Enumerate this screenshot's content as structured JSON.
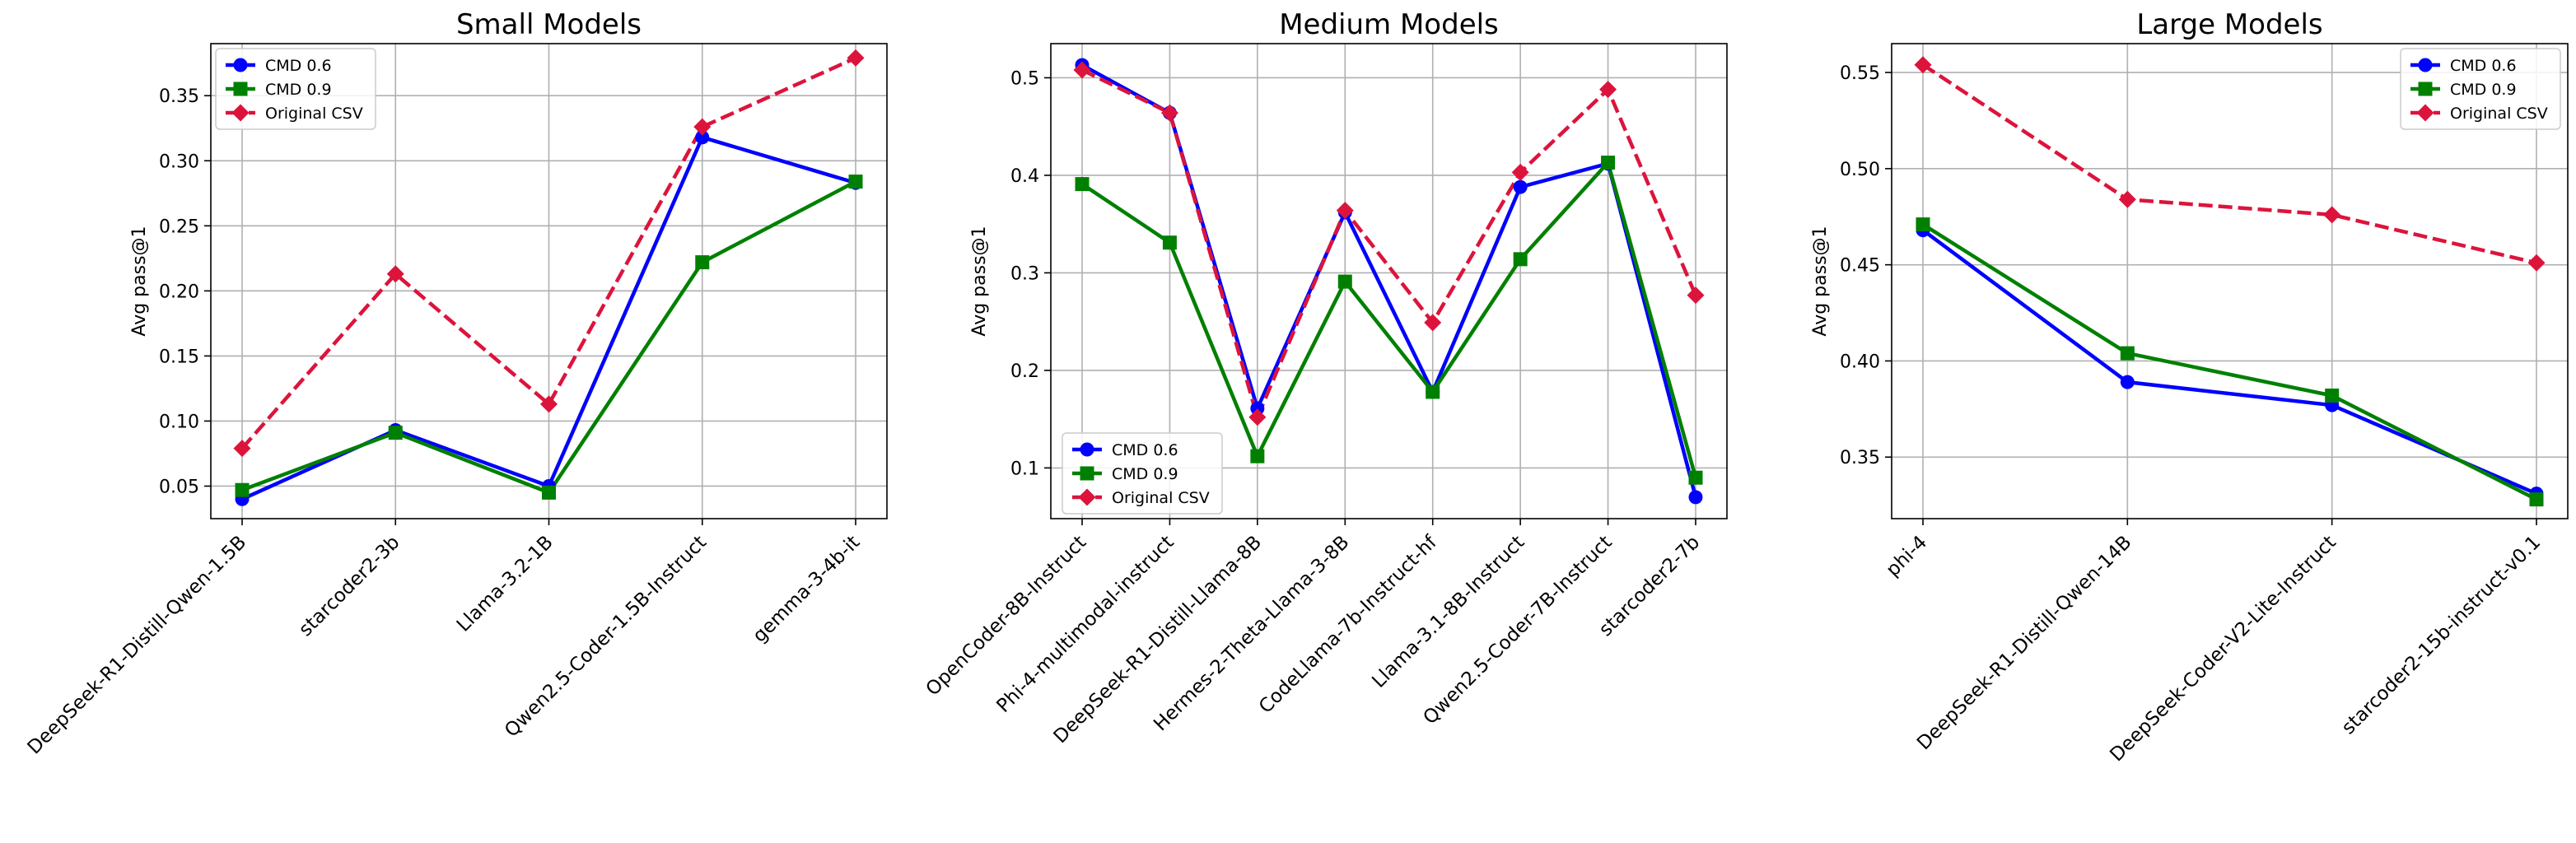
{
  "colors": {
    "CMD 0.6": "#0000ff",
    "CMD 0.9": "#008000",
    "Original CSV": "#dc143c"
  },
  "chart_data": [
    {
      "type": "line",
      "title": "Small Models",
      "xlabel": "",
      "ylabel": "Avg pass@1",
      "categories": [
        "DeepSeek-R1-Distill-Qwen-1.5B",
        "starcoder2-3b",
        "Llama-3.2-1B",
        "Qwen2.5-Coder-1.5B-Instruct",
        "gemma-3-4b-it"
      ],
      "ylim": [
        0.025,
        0.39
      ],
      "yticks": [
        0.05,
        0.1,
        0.15,
        0.2,
        0.25,
        0.3,
        0.35
      ],
      "ytick_labels": [
        "0.05",
        "0.10",
        "0.15",
        "0.20",
        "0.25",
        "0.30",
        "0.35"
      ],
      "grid": true,
      "legend": "upper left",
      "series": [
        {
          "name": "CMD 0.6",
          "marker": "circle",
          "dashed": false,
          "values": [
            0.04,
            0.093,
            0.05,
            0.318,
            0.283
          ]
        },
        {
          "name": "CMD 0.9",
          "marker": "square",
          "dashed": false,
          "values": [
            0.047,
            0.091,
            0.045,
            0.222,
            0.284
          ]
        },
        {
          "name": "Original CSV",
          "marker": "diamond",
          "dashed": true,
          "values": [
            0.079,
            0.213,
            0.113,
            0.326,
            0.379
          ]
        }
      ]
    },
    {
      "type": "line",
      "title": "Medium Models",
      "xlabel": "",
      "ylabel": "Avg pass@1",
      "categories": [
        "OpenCoder-8B-Instruct",
        "Phi-4-multimodal-instruct",
        "DeepSeek-R1-Distill-Llama-8B",
        "Hermes-2-Theta-Llama-3-8B",
        "CodeLlama-7b-Instruct-hf",
        "Llama-3.1-8B-Instruct",
        "Qwen2.5-Coder-7B-Instruct",
        "starcoder2-7b"
      ],
      "ylim": [
        0.048,
        0.535
      ],
      "yticks": [
        0.1,
        0.2,
        0.3,
        0.4,
        0.5
      ],
      "ytick_labels": [
        "0.1",
        "0.2",
        "0.3",
        "0.4",
        "0.5"
      ],
      "grid": true,
      "legend": "lower left",
      "series": [
        {
          "name": "CMD 0.6",
          "marker": "circle",
          "dashed": false,
          "values": [
            0.513,
            0.464,
            0.161,
            0.362,
            0.178,
            0.388,
            0.412,
            0.07
          ]
        },
        {
          "name": "CMD 0.9",
          "marker": "square",
          "dashed": false,
          "values": [
            0.391,
            0.331,
            0.112,
            0.291,
            0.178,
            0.314,
            0.413,
            0.09
          ]
        },
        {
          "name": "Original CSV",
          "marker": "diamond",
          "dashed": true,
          "values": [
            0.508,
            0.464,
            0.152,
            0.364,
            0.249,
            0.403,
            0.488,
            0.277
          ]
        }
      ]
    },
    {
      "type": "line",
      "title": "Large Models",
      "xlabel": "",
      "ylabel": "Avg pass@1",
      "categories": [
        "phi-4",
        "DeepSeek-R1-Distill-Qwen-14B",
        "DeepSeek-Coder-V2-Lite-Instruct",
        "starcoder2-15b-instruct-v0.1"
      ],
      "ylim": [
        0.318,
        0.565
      ],
      "yticks": [
        0.35,
        0.4,
        0.45,
        0.5,
        0.55
      ],
      "ytick_labels": [
        "0.35",
        "0.40",
        "0.45",
        "0.50",
        "0.55"
      ],
      "grid": true,
      "legend": "upper right",
      "series": [
        {
          "name": "CMD 0.6",
          "marker": "circle",
          "dashed": false,
          "values": [
            0.468,
            0.389,
            0.377,
            0.331
          ]
        },
        {
          "name": "CMD 0.9",
          "marker": "square",
          "dashed": false,
          "values": [
            0.471,
            0.404,
            0.382,
            0.328
          ]
        },
        {
          "name": "Original CSV",
          "marker": "diamond",
          "dashed": true,
          "values": [
            0.554,
            0.484,
            0.476,
            0.451
          ]
        }
      ]
    }
  ]
}
